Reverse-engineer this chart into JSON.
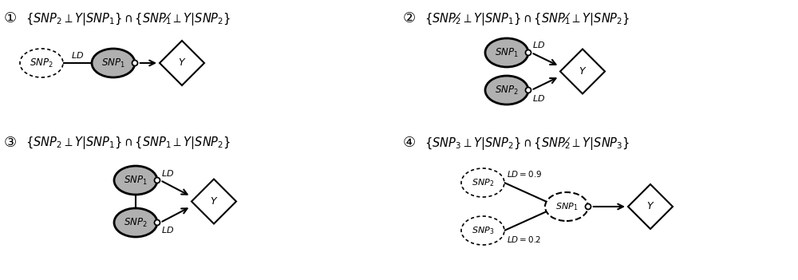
{
  "bg_color": "#ffffff",
  "gray_fill": "#b0b0b0",
  "white_fill": "#ffffff",
  "black": "#000000",
  "panel1_formula": "{$SNP_2 \\perp Y | SNP_1$} $\\cap$ {$SNP_1 \\not\\perp Y | SNP_2$}",
  "panel2_formula": "{$SNP_2 \\not\\perp Y | SNP_1$} $\\cap$ {$SNP_1 \\not\\perp Y | SNP_2$}",
  "panel3_formula": "{$SNP_2 \\perp Y | SNP_1$} $\\cap$ {$SNP_1 \\perp Y | SNP_2$}",
  "panel4_formula": "{$SNP_3 \\perp Y | SNP_2$} $\\cap$ {$SNP_2 \\not\\perp Y | SNP_3$}",
  "label1": "①",
  "label2": "②",
  "label3": "③",
  "label4": "④",
  "panel1": {
    "snp2": [
      0.52,
      2.72
    ],
    "snp1": [
      1.42,
      2.72
    ],
    "y": [
      2.28,
      2.72
    ],
    "snp2_dotted": true,
    "snp1_gray": true,
    "line_snp2_snp1": true,
    "arrow_snp1_y": true
  },
  "panel2": {
    "snp1": [
      6.35,
      2.85
    ],
    "snp2": [
      6.35,
      2.38
    ],
    "y": [
      7.3,
      2.615
    ],
    "snp1_gray": true,
    "snp2_gray": true,
    "arrow_snp1_y": true,
    "arrow_snp2_y": true
  },
  "panel3": {
    "snp1": [
      1.7,
      1.25
    ],
    "snp2": [
      1.7,
      0.72
    ],
    "y": [
      2.68,
      0.985
    ],
    "snp1_gray": true,
    "snp2_gray": true,
    "line_snp1_snp2": true,
    "arrow_snp1_y": true,
    "arrow_snp2_y": true
  },
  "panel4": {
    "snp2": [
      6.05,
      1.22
    ],
    "snp3": [
      6.05,
      0.62
    ],
    "snp1": [
      7.1,
      0.92
    ],
    "y": [
      8.15,
      0.92
    ],
    "snp2_dotted": true,
    "snp3_dotted": true,
    "snp1_dashed": true,
    "line_snp2_snp1": true,
    "line_snp3_snp1": true,
    "arrow_snp1_y": true
  }
}
